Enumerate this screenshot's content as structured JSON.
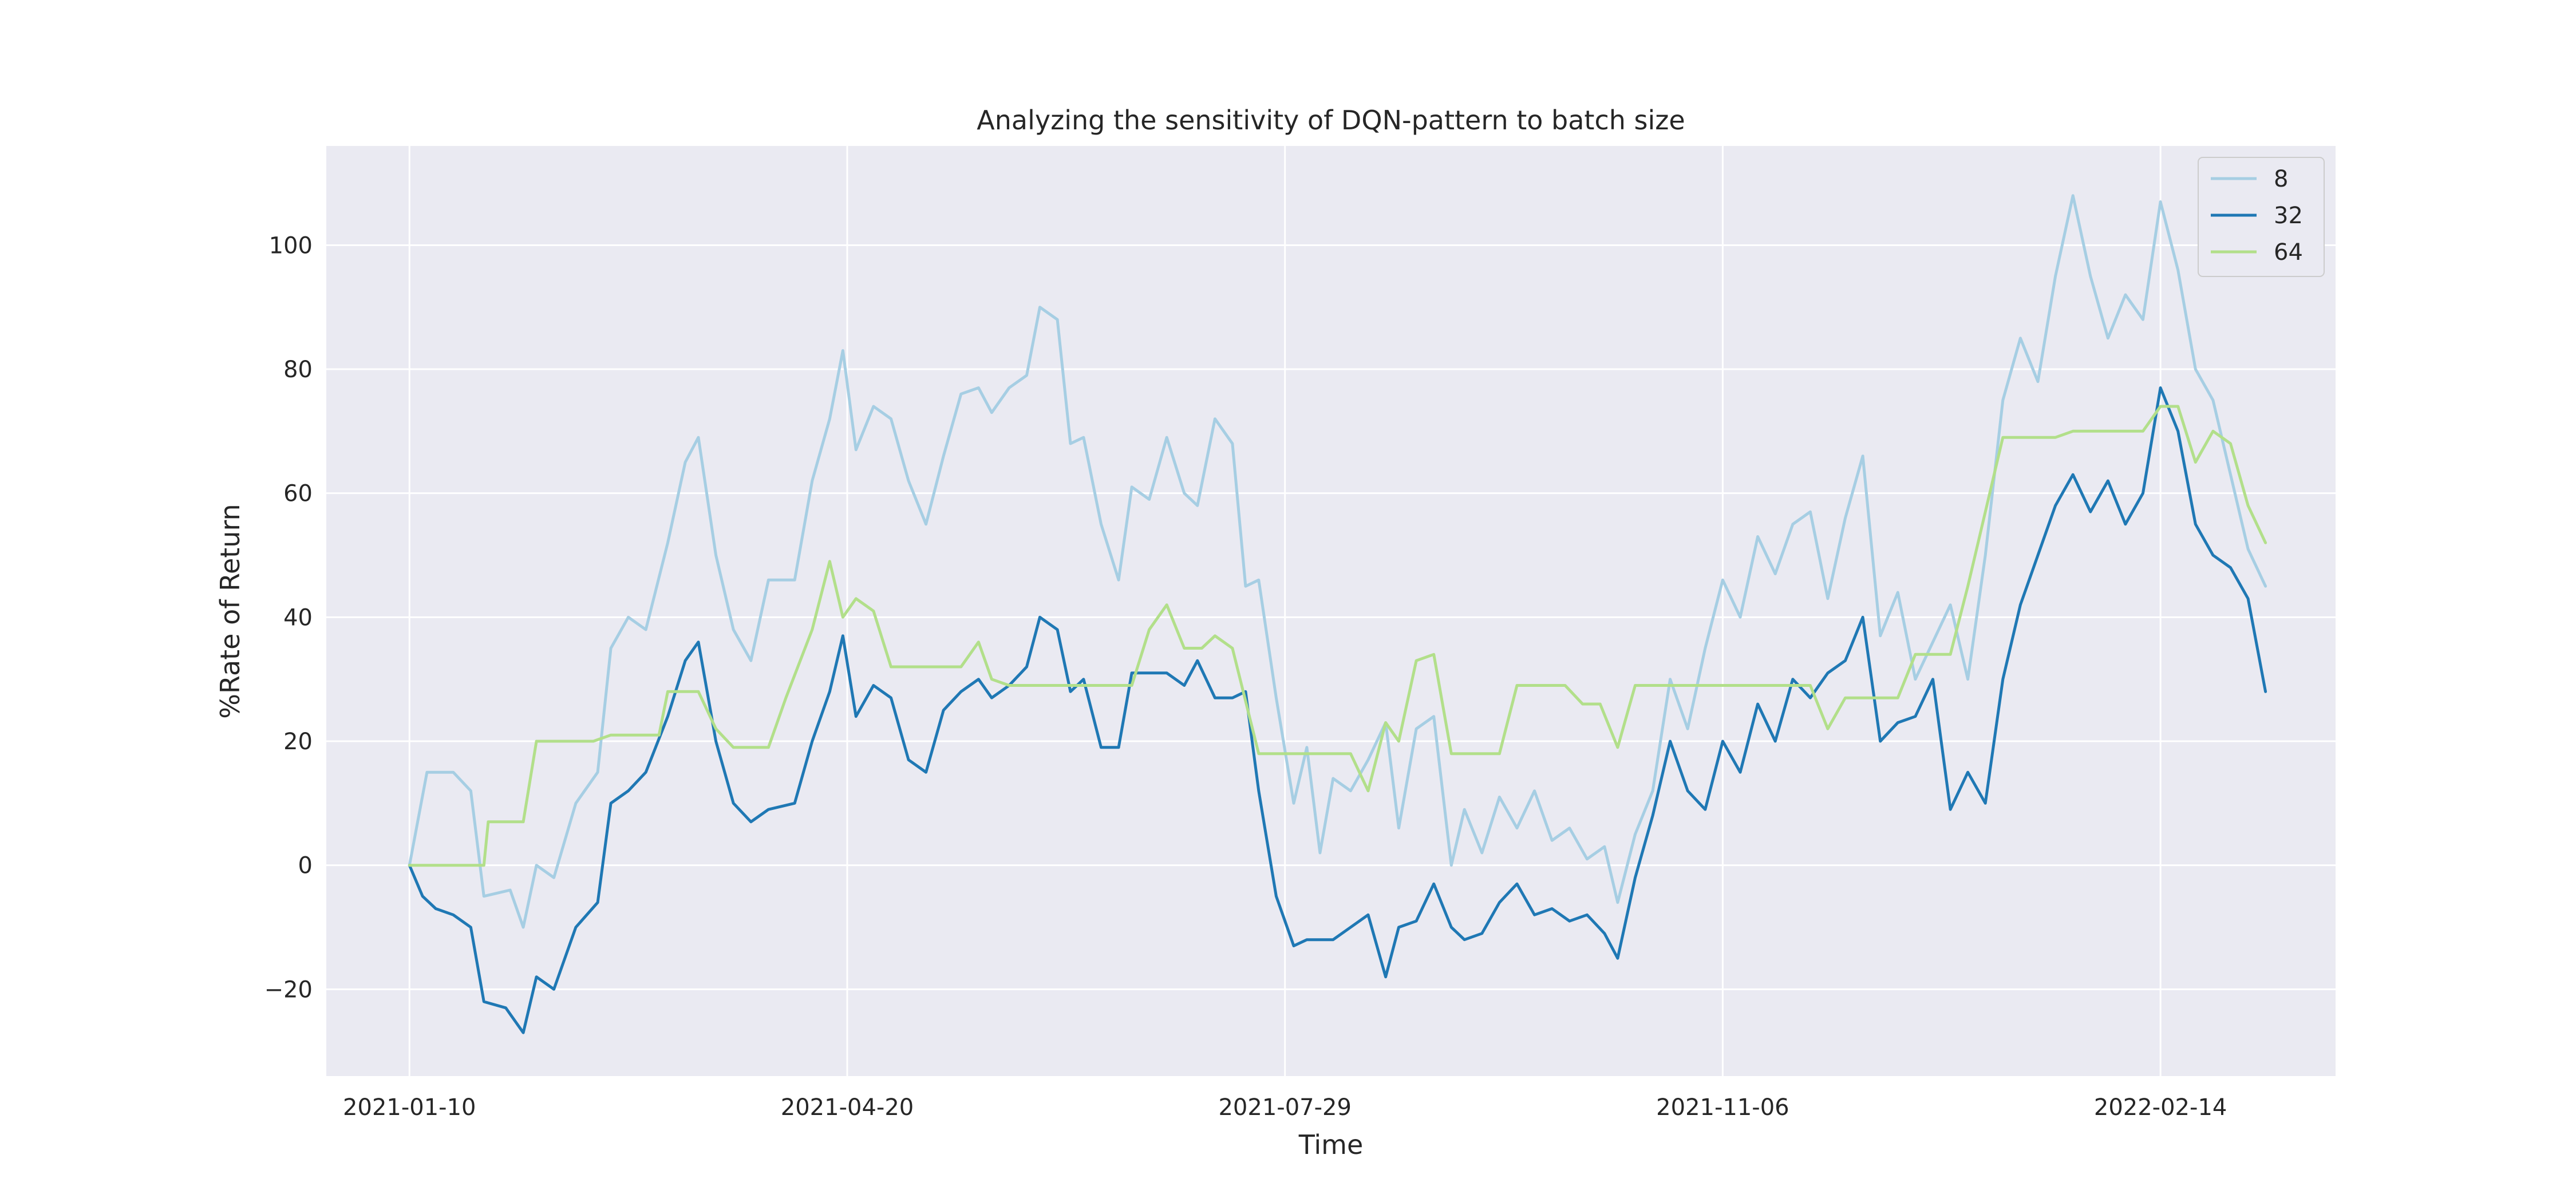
{
  "chart_data": {
    "type": "line",
    "title": "Analyzing the sensitivity of DQN-pattern to batch size",
    "xlabel": "Time",
    "ylabel": "%Rate of Return",
    "xlim": [
      "2020-12-22",
      "2022-03-26"
    ],
    "ylim": [
      -34,
      116
    ],
    "x_ticks": [
      "2021-01-10",
      "2021-04-20",
      "2021-07-29",
      "2021-11-06",
      "2022-02-14"
    ],
    "y_ticks": [
      -20,
      0,
      20,
      40,
      60,
      80,
      100
    ],
    "grid": true,
    "legend_position": "top-right",
    "series": [
      {
        "name": "8",
        "color": "#a6cee3",
        "points": [
          [
            "2021-01-10",
            0
          ],
          [
            "2021-01-14",
            15
          ],
          [
            "2021-01-20",
            15
          ],
          [
            "2021-01-24",
            12
          ],
          [
            "2021-01-27",
            -5
          ],
          [
            "2021-02-02",
            -4
          ],
          [
            "2021-02-05",
            -10
          ],
          [
            "2021-02-08",
            0
          ],
          [
            "2021-02-12",
            -2
          ],
          [
            "2021-02-17",
            10
          ],
          [
            "2021-02-22",
            15
          ],
          [
            "2021-02-25",
            35
          ],
          [
            "2021-03-01",
            40
          ],
          [
            "2021-03-05",
            38
          ],
          [
            "2021-03-10",
            52
          ],
          [
            "2021-03-14",
            65
          ],
          [
            "2021-03-17",
            69
          ],
          [
            "2021-03-21",
            50
          ],
          [
            "2021-03-25",
            38
          ],
          [
            "2021-03-29",
            33
          ],
          [
            "2021-04-02",
            46
          ],
          [
            "2021-04-08",
            46
          ],
          [
            "2021-04-12",
            62
          ],
          [
            "2021-04-16",
            72
          ],
          [
            "2021-04-19",
            83
          ],
          [
            "2021-04-22",
            67
          ],
          [
            "2021-04-26",
            74
          ],
          [
            "2021-04-30",
            72
          ],
          [
            "2021-05-04",
            62
          ],
          [
            "2021-05-08",
            55
          ],
          [
            "2021-05-12",
            66
          ],
          [
            "2021-05-16",
            76
          ],
          [
            "2021-05-20",
            77
          ],
          [
            "2021-05-23",
            73
          ],
          [
            "2021-05-27",
            77
          ],
          [
            "2021-05-31",
            79
          ],
          [
            "2021-06-03",
            90
          ],
          [
            "2021-06-07",
            88
          ],
          [
            "2021-06-10",
            68
          ],
          [
            "2021-06-13",
            69
          ],
          [
            "2021-06-17",
            55
          ],
          [
            "2021-06-21",
            46
          ],
          [
            "2021-06-24",
            61
          ],
          [
            "2021-06-28",
            59
          ],
          [
            "2021-07-02",
            69
          ],
          [
            "2021-07-06",
            60
          ],
          [
            "2021-07-09",
            58
          ],
          [
            "2021-07-13",
            72
          ],
          [
            "2021-07-17",
            68
          ],
          [
            "2021-07-20",
            45
          ],
          [
            "2021-07-23",
            46
          ],
          [
            "2021-07-27",
            27
          ],
          [
            "2021-07-31",
            10
          ],
          [
            "2021-08-03",
            19
          ],
          [
            "2021-08-06",
            2
          ],
          [
            "2021-08-09",
            14
          ],
          [
            "2021-08-13",
            12
          ],
          [
            "2021-08-17",
            17
          ],
          [
            "2021-08-21",
            23
          ],
          [
            "2021-08-24",
            6
          ],
          [
            "2021-08-28",
            22
          ],
          [
            "2021-09-01",
            24
          ],
          [
            "2021-09-05",
            0
          ],
          [
            "2021-09-08",
            9
          ],
          [
            "2021-09-12",
            2
          ],
          [
            "2021-09-16",
            11
          ],
          [
            "2021-09-20",
            6
          ],
          [
            "2021-09-24",
            12
          ],
          [
            "2021-09-28",
            4
          ],
          [
            "2021-10-02",
            6
          ],
          [
            "2021-10-06",
            1
          ],
          [
            "2021-10-10",
            3
          ],
          [
            "2021-10-13",
            -6
          ],
          [
            "2021-10-17",
            5
          ],
          [
            "2021-10-21",
            12
          ],
          [
            "2021-10-25",
            30
          ],
          [
            "2021-10-29",
            22
          ],
          [
            "2021-11-02",
            35
          ],
          [
            "2021-11-06",
            46
          ],
          [
            "2021-11-10",
            40
          ],
          [
            "2021-11-14",
            53
          ],
          [
            "2021-11-18",
            47
          ],
          [
            "2021-11-22",
            55
          ],
          [
            "2021-11-26",
            57
          ],
          [
            "2021-11-30",
            43
          ],
          [
            "2021-12-04",
            56
          ],
          [
            "2021-12-08",
            66
          ],
          [
            "2021-12-12",
            37
          ],
          [
            "2021-12-16",
            44
          ],
          [
            "2021-12-20",
            30
          ],
          [
            "2021-12-24",
            36
          ],
          [
            "2021-12-28",
            42
          ],
          [
            "2022-01-01",
            30
          ],
          [
            "2022-01-05",
            50
          ],
          [
            "2022-01-09",
            75
          ],
          [
            "2022-01-13",
            85
          ],
          [
            "2022-01-17",
            78
          ],
          [
            "2022-01-21",
            95
          ],
          [
            "2022-01-25",
            108
          ],
          [
            "2022-01-29",
            95
          ],
          [
            "2022-02-02",
            85
          ],
          [
            "2022-02-06",
            92
          ],
          [
            "2022-02-10",
            88
          ],
          [
            "2022-02-14",
            107
          ],
          [
            "2022-02-18",
            96
          ],
          [
            "2022-02-22",
            80
          ],
          [
            "2022-02-26",
            75
          ],
          [
            "2022-03-02",
            63
          ],
          [
            "2022-03-06",
            51
          ],
          [
            "2022-03-10",
            45
          ]
        ]
      },
      {
        "name": "32",
        "color": "#1f78b4",
        "points": [
          [
            "2021-01-10",
            0
          ],
          [
            "2021-01-13",
            -5
          ],
          [
            "2021-01-16",
            -7
          ],
          [
            "2021-01-20",
            -8
          ],
          [
            "2021-01-24",
            -10
          ],
          [
            "2021-01-27",
            -22
          ],
          [
            "2021-02-01",
            -23
          ],
          [
            "2021-02-05",
            -27
          ],
          [
            "2021-02-08",
            -18
          ],
          [
            "2021-02-12",
            -20
          ],
          [
            "2021-02-17",
            -10
          ],
          [
            "2021-02-22",
            -6
          ],
          [
            "2021-02-25",
            10
          ],
          [
            "2021-03-01",
            12
          ],
          [
            "2021-03-05",
            15
          ],
          [
            "2021-03-10",
            24
          ],
          [
            "2021-03-14",
            33
          ],
          [
            "2021-03-17",
            36
          ],
          [
            "2021-03-21",
            20
          ],
          [
            "2021-03-25",
            10
          ],
          [
            "2021-03-29",
            7
          ],
          [
            "2021-04-02",
            9
          ],
          [
            "2021-04-08",
            10
          ],
          [
            "2021-04-12",
            20
          ],
          [
            "2021-04-16",
            28
          ],
          [
            "2021-04-19",
            37
          ],
          [
            "2021-04-22",
            24
          ],
          [
            "2021-04-26",
            29
          ],
          [
            "2021-04-30",
            27
          ],
          [
            "2021-05-04",
            17
          ],
          [
            "2021-05-08",
            15
          ],
          [
            "2021-05-12",
            25
          ],
          [
            "2021-05-16",
            28
          ],
          [
            "2021-05-20",
            30
          ],
          [
            "2021-05-23",
            27
          ],
          [
            "2021-05-27",
            29
          ],
          [
            "2021-05-31",
            32
          ],
          [
            "2021-06-03",
            40
          ],
          [
            "2021-06-07",
            38
          ],
          [
            "2021-06-10",
            28
          ],
          [
            "2021-06-13",
            30
          ],
          [
            "2021-06-17",
            19
          ],
          [
            "2021-06-21",
            19
          ],
          [
            "2021-06-24",
            31
          ],
          [
            "2021-06-28",
            31
          ],
          [
            "2021-07-02",
            31
          ],
          [
            "2021-07-06",
            29
          ],
          [
            "2021-07-09",
            33
          ],
          [
            "2021-07-13",
            27
          ],
          [
            "2021-07-17",
            27
          ],
          [
            "2021-07-20",
            28
          ],
          [
            "2021-07-23",
            12
          ],
          [
            "2021-07-27",
            -5
          ],
          [
            "2021-07-31",
            -13
          ],
          [
            "2021-08-03",
            -12
          ],
          [
            "2021-08-06",
            -12
          ],
          [
            "2021-08-09",
            -12
          ],
          [
            "2021-08-13",
            -10
          ],
          [
            "2021-08-17",
            -8
          ],
          [
            "2021-08-21",
            -18
          ],
          [
            "2021-08-24",
            -10
          ],
          [
            "2021-08-28",
            -9
          ],
          [
            "2021-09-01",
            -3
          ],
          [
            "2021-09-05",
            -10
          ],
          [
            "2021-09-08",
            -12
          ],
          [
            "2021-09-12",
            -11
          ],
          [
            "2021-09-16",
            -6
          ],
          [
            "2021-09-20",
            -3
          ],
          [
            "2021-09-24",
            -8
          ],
          [
            "2021-09-28",
            -7
          ],
          [
            "2021-10-02",
            -9
          ],
          [
            "2021-10-06",
            -8
          ],
          [
            "2021-10-10",
            -11
          ],
          [
            "2021-10-13",
            -15
          ],
          [
            "2021-10-17",
            -2
          ],
          [
            "2021-10-21",
            8
          ],
          [
            "2021-10-25",
            20
          ],
          [
            "2021-10-29",
            12
          ],
          [
            "2021-11-02",
            9
          ],
          [
            "2021-11-06",
            20
          ],
          [
            "2021-11-10",
            15
          ],
          [
            "2021-11-14",
            26
          ],
          [
            "2021-11-18",
            20
          ],
          [
            "2021-11-22",
            30
          ],
          [
            "2021-11-26",
            27
          ],
          [
            "2021-11-30",
            31
          ],
          [
            "2021-12-04",
            33
          ],
          [
            "2021-12-08",
            40
          ],
          [
            "2021-12-12",
            20
          ],
          [
            "2021-12-16",
            23
          ],
          [
            "2021-12-20",
            24
          ],
          [
            "2021-12-24",
            30
          ],
          [
            "2021-12-28",
            9
          ],
          [
            "2022-01-01",
            15
          ],
          [
            "2022-01-05",
            10
          ],
          [
            "2022-01-09",
            30
          ],
          [
            "2022-01-13",
            42
          ],
          [
            "2022-01-17",
            50
          ],
          [
            "2022-01-21",
            58
          ],
          [
            "2022-01-25",
            63
          ],
          [
            "2022-01-29",
            57
          ],
          [
            "2022-02-02",
            62
          ],
          [
            "2022-02-06",
            55
          ],
          [
            "2022-02-10",
            60
          ],
          [
            "2022-02-14",
            77
          ],
          [
            "2022-02-18",
            70
          ],
          [
            "2022-02-22",
            55
          ],
          [
            "2022-02-26",
            50
          ],
          [
            "2022-03-02",
            48
          ],
          [
            "2022-03-06",
            43
          ],
          [
            "2022-03-10",
            28
          ]
        ]
      },
      {
        "name": "64",
        "color": "#b2df8a",
        "points": [
          [
            "2021-01-10",
            0
          ],
          [
            "2021-01-20",
            0
          ],
          [
            "2021-01-27",
            0
          ],
          [
            "2021-01-28",
            7
          ],
          [
            "2021-02-05",
            7
          ],
          [
            "2021-02-08",
            20
          ],
          [
            "2021-02-21",
            20
          ],
          [
            "2021-02-25",
            21
          ],
          [
            "2021-03-08",
            21
          ],
          [
            "2021-03-10",
            28
          ],
          [
            "2021-03-17",
            28
          ],
          [
            "2021-03-21",
            22
          ],
          [
            "2021-03-25",
            19
          ],
          [
            "2021-04-02",
            19
          ],
          [
            "2021-04-06",
            27
          ],
          [
            "2021-04-12",
            38
          ],
          [
            "2021-04-16",
            49
          ],
          [
            "2021-04-19",
            40
          ],
          [
            "2021-04-22",
            43
          ],
          [
            "2021-04-26",
            41
          ],
          [
            "2021-04-30",
            32
          ],
          [
            "2021-05-16",
            32
          ],
          [
            "2021-05-20",
            36
          ],
          [
            "2021-05-23",
            30
          ],
          [
            "2021-05-27",
            29
          ],
          [
            "2021-06-20",
            29
          ],
          [
            "2021-06-24",
            29
          ],
          [
            "2021-06-28",
            38
          ],
          [
            "2021-07-02",
            42
          ],
          [
            "2021-07-06",
            35
          ],
          [
            "2021-07-10",
            35
          ],
          [
            "2021-07-13",
            37
          ],
          [
            "2021-07-17",
            35
          ],
          [
            "2021-07-23",
            18
          ],
          [
            "2021-08-13",
            18
          ],
          [
            "2021-08-17",
            12
          ],
          [
            "2021-08-21",
            23
          ],
          [
            "2021-08-24",
            20
          ],
          [
            "2021-08-28",
            33
          ],
          [
            "2021-09-01",
            34
          ],
          [
            "2021-09-05",
            18
          ],
          [
            "2021-09-16",
            18
          ],
          [
            "2021-09-20",
            29
          ],
          [
            "2021-10-01",
            29
          ],
          [
            "2021-10-05",
            26
          ],
          [
            "2021-10-09",
            26
          ],
          [
            "2021-10-13",
            19
          ],
          [
            "2021-10-17",
            29
          ],
          [
            "2021-11-06",
            29
          ],
          [
            "2021-11-26",
            29
          ],
          [
            "2021-11-30",
            22
          ],
          [
            "2021-12-04",
            27
          ],
          [
            "2021-12-16",
            27
          ],
          [
            "2021-12-20",
            34
          ],
          [
            "2021-12-28",
            34
          ],
          [
            "2022-01-01",
            45
          ],
          [
            "2022-01-05",
            57
          ],
          [
            "2022-01-09",
            69
          ],
          [
            "2022-01-21",
            69
          ],
          [
            "2022-01-25",
            70
          ],
          [
            "2022-02-10",
            70
          ],
          [
            "2022-02-14",
            74
          ],
          [
            "2022-02-18",
            74
          ],
          [
            "2022-02-22",
            65
          ],
          [
            "2022-02-26",
            70
          ],
          [
            "2022-03-02",
            68
          ],
          [
            "2022-03-06",
            58
          ],
          [
            "2022-03-10",
            52
          ]
        ]
      }
    ]
  }
}
